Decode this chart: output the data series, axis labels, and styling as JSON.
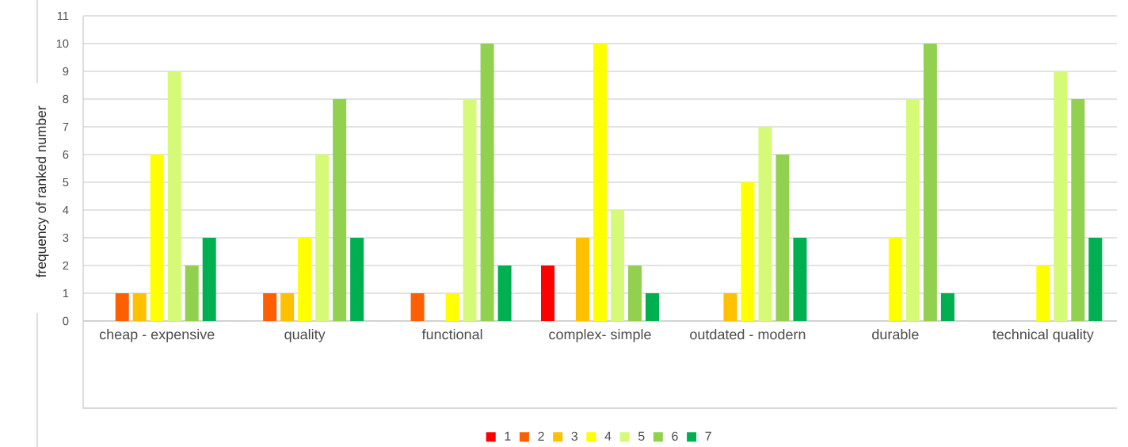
{
  "chart_data": {
    "type": "bar",
    "ylabel": "frequency of ranked number",
    "categories": [
      "cheap - expensive",
      "quality",
      "functional",
      "complex- simple",
      "outdated - modern",
      "durable",
      "technical quality"
    ],
    "series": [
      {
        "name": "1",
        "color": "#ff0000",
        "values": [
          0,
          0,
          0,
          2,
          0,
          0,
          0
        ]
      },
      {
        "name": "2",
        "color": "#ff5f00",
        "values": [
          1,
          1,
          1,
          0,
          0,
          0,
          0
        ]
      },
      {
        "name": "3",
        "color": "#ffc000",
        "values": [
          1,
          1,
          0,
          3,
          1,
          0,
          0
        ]
      },
      {
        "name": "4",
        "color": "#ffff00",
        "values": [
          6,
          3,
          1,
          10,
          5,
          3,
          2
        ]
      },
      {
        "name": "5",
        "color": "#d5fa78",
        "values": [
          9,
          6,
          8,
          4,
          7,
          8,
          9
        ]
      },
      {
        "name": "6",
        "color": "#92d050",
        "values": [
          2,
          8,
          10,
          2,
          6,
          10,
          8
        ]
      },
      {
        "name": "7",
        "color": "#00b050",
        "values": [
          3,
          3,
          2,
          1,
          3,
          1,
          3
        ]
      }
    ],
    "ylim": [
      0,
      11
    ],
    "yticks": [
      0,
      1,
      2,
      3,
      4,
      5,
      6,
      7,
      8,
      9,
      10,
      11
    ],
    "grid": "y",
    "legend": "bottom"
  }
}
